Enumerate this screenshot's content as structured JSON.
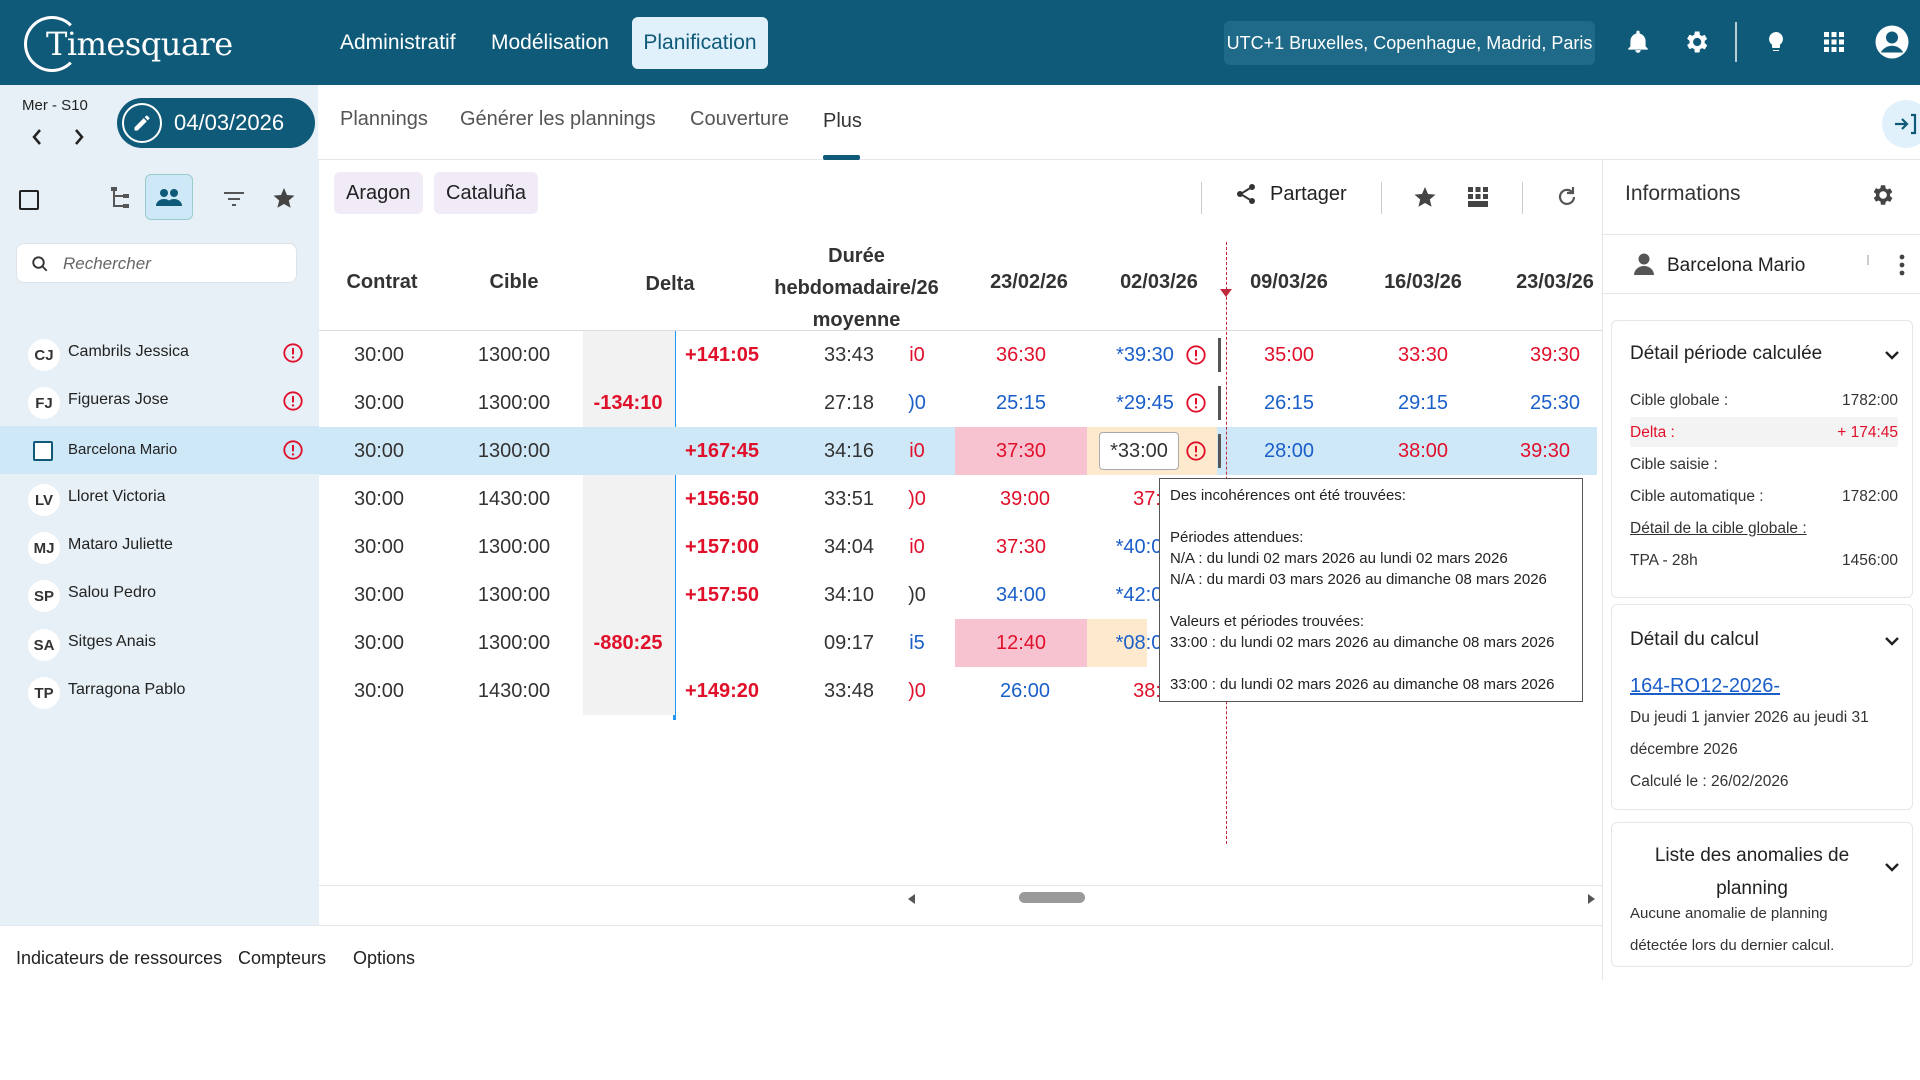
{
  "app": {
    "logo": "Timesquare",
    "nav": [
      "Administratif",
      "Modélisation",
      "Planification"
    ],
    "active_nav": "Planification",
    "timezone": "UTC+1 Bruxelles, Copenhague, Madrid, Paris"
  },
  "subheader": {
    "weekday": "Mer - S10",
    "date": "04/03/2026",
    "tabs": [
      "Plannings",
      "Générer les plannings",
      "Couverture",
      "Plus"
    ],
    "active_tab": "Plus"
  },
  "left": {
    "search_placeholder": "Rechercher",
    "people": [
      {
        "initials": "CJ",
        "name": "Cambrils Jessica"
      },
      {
        "initials": "FJ",
        "name": "Figueras Jose"
      },
      {
        "initials": "",
        "name": "Barcelona Mario"
      },
      {
        "initials": "LV",
        "name": "Lloret Victoria"
      },
      {
        "initials": "MJ",
        "name": "Mataro Juliette"
      },
      {
        "initials": "SP",
        "name": "Salou Pedro"
      },
      {
        "initials": "SA",
        "name": "Sitges Anais"
      },
      {
        "initials": "TP",
        "name": "Tarragona Pablo"
      }
    ]
  },
  "toolbar": {
    "chips": [
      "Aragon",
      "Cataluña"
    ],
    "share": "Partager"
  },
  "table": {
    "headers": {
      "contrat": "Contrat",
      "cible": "Cible",
      "delta": "Delta",
      "duree1": "Durée",
      "duree2": "hebdomadaire/26",
      "duree3": "moyenne",
      "w1": "23/02/26",
      "w2": "02/03/26",
      "w3": "09/03/26",
      "w4": "16/03/26",
      "w5": "23/03/26"
    },
    "rows": [
      {
        "contrat": "30:00",
        "cible": "1300:00",
        "delta_neg": "",
        "delta_pos": "+141:05",
        "duree": "33:43",
        "cut": "i0",
        "w1": "36:30",
        "w2": "*39:30",
        "w3": "35:00",
        "w4": "33:30",
        "w5": "39:30"
      },
      {
        "contrat": "30:00",
        "cible": "1300:00",
        "delta_neg": "-134:10",
        "delta_pos": "",
        "duree": "27:18",
        "cut": ")0",
        "w1": "25:15",
        "w2": "*29:45",
        "w3": "26:15",
        "w4": "29:15",
        "w5": "25:30"
      },
      {
        "contrat": "30:00",
        "cible": "1300:00",
        "delta_neg": "",
        "delta_pos": "+167:45",
        "duree": "34:16",
        "cut": "i0",
        "w1": "37:30",
        "w2": "*33:00",
        "w3": "28:00",
        "w4": "38:00",
        "w5": "39:30"
      },
      {
        "contrat": "30:00",
        "cible": "1430:00",
        "delta_neg": "",
        "delta_pos": "+156:50",
        "duree": "33:51",
        "cut": ")0",
        "w1": "39:00",
        "w2": "37:",
        "w3": "",
        "w4": "",
        "w5": ""
      },
      {
        "contrat": "30:00",
        "cible": "1300:00",
        "delta_neg": "",
        "delta_pos": "+157:00",
        "duree": "34:04",
        "cut": "i0",
        "w1": "37:30",
        "w2": "*40:0",
        "w3": "",
        "w4": "",
        "w5": ""
      },
      {
        "contrat": "30:00",
        "cible": "1300:00",
        "delta_neg": "",
        "delta_pos": "+157:50",
        "duree": "34:10",
        "cut": ")0",
        "w1": "34:00",
        "w2": "*42:0",
        "w3": "",
        "w4": "",
        "w5": ""
      },
      {
        "contrat": "30:00",
        "cible": "1300:00",
        "delta_neg": "-880:25",
        "delta_pos": "",
        "duree": "09:17",
        "cut": "i5",
        "w1": "12:40",
        "w2": "*08:0",
        "w3": "",
        "w4": "",
        "w5": ""
      },
      {
        "contrat": "30:00",
        "cible": "1430:00",
        "delta_neg": "",
        "delta_pos": "+149:20",
        "duree": "33:48",
        "cut": ")0",
        "w1": "26:00",
        "w2": "38:",
        "w3": "",
        "w4": "",
        "w5": ""
      }
    ]
  },
  "tooltip": {
    "l1": "Des incohérences ont été trouvées:",
    "l2": "Périodes attendues:",
    "l3": "N/A : du lundi 02 mars 2026 au lundi 02 mars 2026",
    "l4": "N/A : du mardi 03 mars 2026 au dimanche 08 mars 2026",
    "l5": "Valeurs et périodes trouvées:",
    "l6": "33:00 : du lundi 02 mars 2026 au dimanche 08 mars 2026",
    "l7": "33:00 : du lundi 02 mars 2026 au dimanche 08 mars 2026"
  },
  "bottom": {
    "tabs": [
      "Indicateurs de ressources",
      "Compteurs",
      "Options"
    ]
  },
  "right": {
    "title": "Informations",
    "user": "Barcelona Mario",
    "card1": {
      "title": "Détail période calculée",
      "cible_globale_k": "Cible globale :",
      "cible_globale_v": "1782:00",
      "delta_k": "Delta :",
      "delta_v": "+ 174:45",
      "cible_saisie_k": "Cible saisie :",
      "cible_auto_k": "Cible automatique :",
      "cible_auto_v": "1782:00",
      "detail_link": "Détail de la cible globale :",
      "tpa_k": "TPA - 28h",
      "tpa_v": "1456:00"
    },
    "card2": {
      "title": "Détail du calcul",
      "link": "164-RO12-2026-",
      "line1": "Du jeudi 1 janvier 2026 au jeudi 31",
      "line2": "décembre 2026",
      "line3": "Calculé le : 26/02/2026"
    },
    "card3": {
      "title1": "Liste des anomalies de",
      "title2": "planning",
      "line1": "Aucune anomalie de planning",
      "line2": "détectée lors du dernier calcul."
    }
  },
  "colors": {
    "primary": "#0f5a78",
    "red": "#e0102b",
    "blue": "#1a5fc9",
    "selected_row": "#cfe8f8",
    "pink_cell": "#f8c3d1",
    "peach_cell": "#fde9cd"
  }
}
